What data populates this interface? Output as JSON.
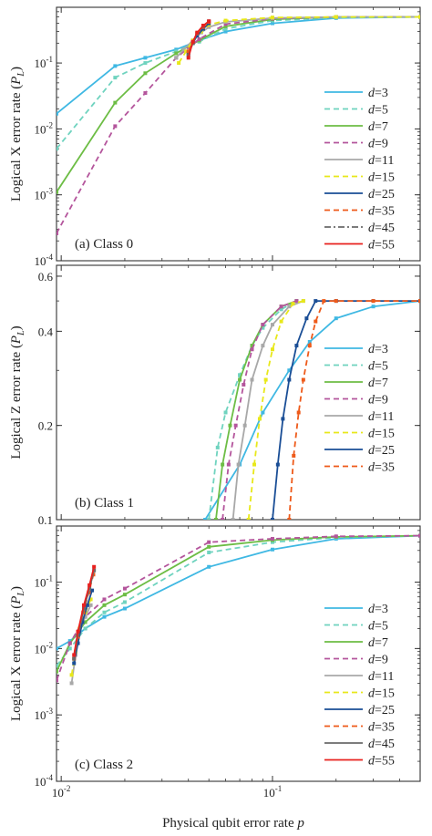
{
  "colors": {
    "d3": "#3fb8e3",
    "d5": "#6fd3bf",
    "d7": "#6dbd45",
    "d9": "#b4559c",
    "d11": "#a8a8a8",
    "d15": "#e8e81a",
    "d25": "#1a4e96",
    "d35": "#ee5a1a",
    "d45": "#6a6a6a",
    "d55": "#e8201e"
  },
  "chart_data": [
    {
      "type": "line",
      "panel_label": "(a) Class 0",
      "ylabel": "Logical X error rate (P_L)",
      "xlabel": "Physical qubit error rate p",
      "xscale": "log",
      "yscale": "log",
      "xlim": [
        0.0095,
        0.5
      ],
      "ylim": [
        0.0001,
        0.7
      ],
      "x_ticks": [
        {
          "v": 0.01,
          "base": "10",
          "exp": "-2"
        },
        {
          "v": 0.1,
          "base": "10",
          "exp": "-1"
        }
      ],
      "y_ticks": [
        {
          "v": 0.1,
          "base": "10",
          "exp": "-1"
        },
        {
          "v": 0.01,
          "base": "10",
          "exp": "-2"
        },
        {
          "v": 0.001,
          "base": "10",
          "exp": "-3"
        },
        {
          "v": 0.0001,
          "base": "10",
          "exp": "-4"
        }
      ],
      "legend": "right",
      "series": [
        {
          "name": "d=3",
          "d": "3",
          "dash": "solid",
          "color": "d3",
          "x": [
            0.0095,
            0.018,
            0.025,
            0.035,
            0.045,
            0.06,
            0.1,
            0.2,
            0.5
          ],
          "y": [
            0.017,
            0.09,
            0.12,
            0.16,
            0.22,
            0.3,
            0.4,
            0.48,
            0.5
          ]
        },
        {
          "name": "d=5",
          "d": "5",
          "dash": "dashed",
          "color": "d5",
          "x": [
            0.0095,
            0.018,
            0.025,
            0.035,
            0.045,
            0.06,
            0.1,
            0.2,
            0.5
          ],
          "y": [
            0.005,
            0.06,
            0.1,
            0.15,
            0.21,
            0.33,
            0.44,
            0.49,
            0.5
          ]
        },
        {
          "name": "d=7",
          "d": "7",
          "dash": "solid",
          "color": "d7",
          "x": [
            0.0095,
            0.018,
            0.025,
            0.035,
            0.045,
            0.06,
            0.1,
            0.2,
            0.5
          ],
          "y": [
            0.0011,
            0.025,
            0.07,
            0.14,
            0.22,
            0.36,
            0.46,
            0.5,
            0.5
          ]
        },
        {
          "name": "d=9",
          "d": "9",
          "dash": "dashed",
          "color": "d9",
          "x": [
            0.0095,
            0.018,
            0.025,
            0.035,
            0.045,
            0.06,
            0.1,
            0.2,
            0.5
          ],
          "y": [
            0.00026,
            0.011,
            0.035,
            0.12,
            0.23,
            0.39,
            0.47,
            0.5,
            0.5
          ]
        },
        {
          "name": "d=11",
          "d": "11",
          "dash": "solid",
          "color": "d11",
          "x": [
            0.035,
            0.038,
            0.042,
            0.046,
            0.05,
            0.06,
            0.1,
            0.2,
            0.5
          ],
          "y": [
            0.12,
            0.16,
            0.22,
            0.29,
            0.35,
            0.42,
            0.48,
            0.5,
            0.5
          ]
        },
        {
          "name": "d=15",
          "d": "15",
          "dash": "dashed",
          "color": "d15",
          "x": [
            0.036,
            0.039,
            0.042,
            0.046,
            0.05,
            0.06,
            0.1,
            0.2,
            0.5
          ],
          "y": [
            0.1,
            0.15,
            0.22,
            0.3,
            0.38,
            0.44,
            0.49,
            0.5,
            0.5
          ]
        },
        {
          "name": "d=25",
          "d": "25",
          "dash": "solid",
          "color": "d25",
          "x": [
            0.04,
            0.042,
            0.044,
            0.047,
            0.05
          ],
          "y": [
            0.14,
            0.2,
            0.26,
            0.33,
            0.4
          ]
        },
        {
          "name": "d=35",
          "d": "35",
          "dash": "dashed",
          "color": "d35",
          "x": [
            0.04,
            0.042,
            0.044,
            0.047,
            0.05
          ],
          "y": [
            0.15,
            0.21,
            0.28,
            0.35,
            0.42
          ]
        },
        {
          "name": "d=45",
          "d": "45",
          "dash": "dashdot",
          "color": "d45",
          "x": [
            0.04,
            0.042,
            0.044,
            0.047,
            0.05
          ],
          "y": [
            0.13,
            0.2,
            0.28,
            0.36,
            0.43
          ]
        },
        {
          "name": "d=55",
          "d": "55",
          "dash": "solid",
          "color": "d55",
          "x": [
            0.04,
            0.042,
            0.044,
            0.047,
            0.05
          ],
          "y": [
            0.12,
            0.21,
            0.29,
            0.37,
            0.43
          ]
        }
      ]
    },
    {
      "type": "line",
      "panel_label": "(b) Class 1",
      "ylabel": "Logical Z error rate (P_L)",
      "xlabel": "Physical qubit error rate p",
      "xscale": "log",
      "yscale": "log",
      "xlim": [
        0.0095,
        0.5
      ],
      "ylim": [
        0.1,
        0.65
      ],
      "x_ticks": [
        {
          "v": 0.01,
          "base": "10",
          "exp": "-2"
        },
        {
          "v": 0.1,
          "base": "10",
          "exp": "-1"
        }
      ],
      "y_ticks": [
        {
          "v": 0.6,
          "label": "0.6"
        },
        {
          "v": 0.4,
          "label": "0.4"
        },
        {
          "v": 0.2,
          "label": "0.2"
        },
        {
          "v": 0.1,
          "label": "0.1"
        }
      ],
      "legend": "right",
      "series": [
        {
          "name": "d=3",
          "d": "3",
          "dash": "solid",
          "color": "d3",
          "x": [
            0.048,
            0.07,
            0.09,
            0.12,
            0.15,
            0.2,
            0.3,
            0.5
          ],
          "y": [
            0.1,
            0.15,
            0.22,
            0.3,
            0.37,
            0.44,
            0.48,
            0.5
          ]
        },
        {
          "name": "d=5",
          "d": "5",
          "dash": "dashed",
          "color": "d5",
          "x": [
            0.05,
            0.055,
            0.06,
            0.07,
            0.08,
            0.09,
            0.11,
            0.13
          ],
          "y": [
            0.1,
            0.17,
            0.22,
            0.29,
            0.36,
            0.41,
            0.47,
            0.5
          ]
        },
        {
          "name": "d=7",
          "d": "7",
          "dash": "solid",
          "color": "d7",
          "x": [
            0.054,
            0.058,
            0.063,
            0.07,
            0.08,
            0.09,
            0.11,
            0.13
          ],
          "y": [
            0.1,
            0.15,
            0.2,
            0.28,
            0.36,
            0.42,
            0.48,
            0.5
          ]
        },
        {
          "name": "d=9",
          "d": "9",
          "dash": "dashed",
          "color": "d9",
          "x": [
            0.058,
            0.062,
            0.067,
            0.073,
            0.08,
            0.09,
            0.11,
            0.13
          ],
          "y": [
            0.1,
            0.15,
            0.2,
            0.27,
            0.35,
            0.42,
            0.48,
            0.5
          ]
        },
        {
          "name": "d=11",
          "d": "11",
          "dash": "solid",
          "color": "d11",
          "x": [
            0.065,
            0.069,
            0.074,
            0.08,
            0.09,
            0.1,
            0.12,
            0.14
          ],
          "y": [
            0.1,
            0.15,
            0.2,
            0.28,
            0.36,
            0.42,
            0.48,
            0.5
          ]
        },
        {
          "name": "d=15",
          "d": "15",
          "dash": "dashed",
          "color": "d15",
          "x": [
            0.077,
            0.082,
            0.087,
            0.093,
            0.1,
            0.11,
            0.125,
            0.14
          ],
          "y": [
            0.1,
            0.15,
            0.21,
            0.28,
            0.35,
            0.43,
            0.49,
            0.5
          ]
        },
        {
          "name": "d=25",
          "d": "25",
          "dash": "solid",
          "color": "d25",
          "x": [
            0.1,
            0.106,
            0.112,
            0.12,
            0.13,
            0.145,
            0.16,
            0.2,
            0.3,
            0.5
          ],
          "y": [
            0.1,
            0.15,
            0.21,
            0.28,
            0.36,
            0.44,
            0.5,
            0.5,
            0.5,
            0.5
          ]
        },
        {
          "name": "d=35",
          "d": "35",
          "dash": "dashed",
          "color": "d35",
          "x": [
            0.12,
            0.126,
            0.133,
            0.14,
            0.15,
            0.16,
            0.175,
            0.2,
            0.3,
            0.5
          ],
          "y": [
            0.1,
            0.16,
            0.22,
            0.28,
            0.36,
            0.43,
            0.5,
            0.5,
            0.5,
            0.5
          ]
        }
      ]
    },
    {
      "type": "line",
      "panel_label": "(c) Class 2",
      "ylabel": "Logical X error rate (P_L)",
      "xlabel": "Physical qubit error rate p",
      "xscale": "log",
      "yscale": "log",
      "xlim": [
        0.0095,
        0.5
      ],
      "ylim": [
        0.0001,
        0.7
      ],
      "x_ticks": [
        {
          "v": 0.01,
          "base": "10",
          "exp": "-2"
        },
        {
          "v": 0.1,
          "base": "10",
          "exp": "-1"
        }
      ],
      "y_ticks": [
        {
          "v": 0.1,
          "base": "10",
          "exp": "-1"
        },
        {
          "v": 0.01,
          "base": "10",
          "exp": "-2"
        },
        {
          "v": 0.001,
          "base": "10",
          "exp": "-3"
        },
        {
          "v": 0.0001,
          "base": "10",
          "exp": "-4"
        }
      ],
      "legend": "right",
      "series": [
        {
          "name": "d=3",
          "d": "3",
          "dash": "solid",
          "color": "d3",
          "x": [
            0.0095,
            0.011,
            0.013,
            0.016,
            0.02,
            0.05,
            0.1,
            0.2,
            0.5
          ],
          "y": [
            0.01,
            0.013,
            0.02,
            0.03,
            0.04,
            0.17,
            0.31,
            0.45,
            0.5
          ]
        },
        {
          "name": "d=5",
          "d": "5",
          "dash": "dashed",
          "color": "d5",
          "x": [
            0.0095,
            0.011,
            0.013,
            0.016,
            0.02,
            0.05,
            0.1,
            0.2,
            0.5
          ],
          "y": [
            0.0055,
            0.01,
            0.02,
            0.035,
            0.05,
            0.28,
            0.4,
            0.47,
            0.5
          ]
        },
        {
          "name": "d=7",
          "d": "7",
          "dash": "solid",
          "color": "d7",
          "x": [
            0.0095,
            0.011,
            0.013,
            0.016,
            0.02,
            0.05,
            0.1,
            0.2,
            0.5
          ],
          "y": [
            0.0045,
            0.012,
            0.025,
            0.045,
            0.065,
            0.34,
            0.43,
            0.48,
            0.5
          ]
        },
        {
          "name": "d=9",
          "d": "9",
          "dash": "dashed",
          "color": "d9",
          "x": [
            0.0095,
            0.011,
            0.013,
            0.016,
            0.02,
            0.05,
            0.1,
            0.2,
            0.5
          ],
          "y": [
            0.0033,
            0.012,
            0.03,
            0.055,
            0.08,
            0.4,
            0.45,
            0.49,
            0.5
          ]
        },
        {
          "name": "d=11",
          "d": "11",
          "dash": "solid",
          "color": "d11",
          "x": [
            0.0112,
            0.0117,
            0.0122,
            0.013,
            0.0138
          ],
          "y": [
            0.003,
            0.008,
            0.018,
            0.03,
            0.045
          ]
        },
        {
          "name": "d=15",
          "d": "15",
          "dash": "dashed",
          "color": "d15",
          "x": [
            0.0112,
            0.0117,
            0.0122,
            0.013,
            0.0138
          ],
          "y": [
            0.004,
            0.009,
            0.02,
            0.035,
            0.055
          ]
        },
        {
          "name": "d=25",
          "d": "25",
          "dash": "solid",
          "color": "d25",
          "x": [
            0.0115,
            0.012,
            0.0126,
            0.0133,
            0.014
          ],
          "y": [
            0.006,
            0.012,
            0.025,
            0.045,
            0.075
          ]
        },
        {
          "name": "d=35",
          "d": "35",
          "dash": "dashed",
          "color": "d35",
          "x": [
            0.0115,
            0.012,
            0.0127,
            0.0135,
            0.0142
          ],
          "y": [
            0.007,
            0.015,
            0.035,
            0.07,
            0.13
          ]
        },
        {
          "name": "d=45",
          "d": "45",
          "dash": "solid",
          "color": "d45",
          "x": [
            0.0115,
            0.012,
            0.0128,
            0.0136,
            0.0143
          ],
          "y": [
            0.007,
            0.016,
            0.04,
            0.08,
            0.15
          ]
        },
        {
          "name": "d=55",
          "d": "55",
          "dash": "solid",
          "color": "d55",
          "x": [
            0.0115,
            0.012,
            0.0128,
            0.0136,
            0.0143
          ],
          "y": [
            0.008,
            0.018,
            0.045,
            0.09,
            0.17
          ]
        }
      ]
    }
  ]
}
